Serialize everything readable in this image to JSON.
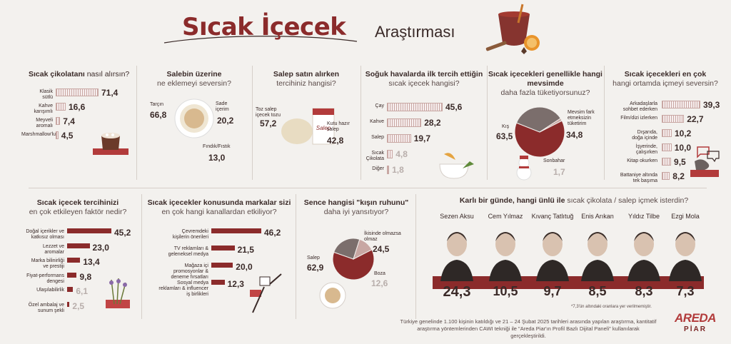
{
  "header": {
    "title_main": "Sıcak İçecek",
    "title_sub": "Araştırması"
  },
  "colors": {
    "dark_red": "#8b2b2b",
    "light_red": "#c8a7a3",
    "gray": "#7b6e6c",
    "bg": "#f3f1ee"
  },
  "chart_data": [
    {
      "id": "chocolate",
      "type": "bar",
      "title_bold": "Sıcak çikolatanı",
      "title_rest": " nasıl alırsın?",
      "categories": [
        "Klasik sütlü",
        "Kahve karışımlı",
        "Meyveli aromalı",
        "Marshmallow'lu"
      ],
      "category_lines": [
        [
          "Klasik",
          "sütlü"
        ],
        [
          "Kahve",
          "karışımlı"
        ],
        [
          "Meyveli",
          "aromalı"
        ],
        [
          "Marshmallow'lu"
        ]
      ],
      "values": [
        71.4,
        16.6,
        7.4,
        4.5
      ],
      "labels": [
        "71,4",
        "16,6",
        "7,4",
        "4,5"
      ]
    },
    {
      "id": "salep_topping",
      "type": "pie",
      "title_bold": "Salebin üzerine",
      "title_rest": "ne eklemeyi seversin?",
      "categories": [
        "Tarçın",
        "Sade içerim",
        "Fındık/Fıstık"
      ],
      "category_lines": [
        [
          "Tarçın"
        ],
        [
          "Sade",
          "içerim"
        ],
        [
          "Fındık/Fıstık"
        ]
      ],
      "values": [
        66.8,
        20.2,
        13.0
      ],
      "labels": [
        "66,8",
        "20,2",
        "13,0"
      ]
    },
    {
      "id": "salep_buy",
      "type": "bar",
      "title_bold": "Salep satın alırken",
      "title_rest": "tercihiniz hangisi?",
      "categories": [
        "Toz salep içecek tozu",
        "Kutu hazır salep"
      ],
      "category_lines": [
        [
          "Toz salep",
          "içecek tozu"
        ],
        [
          "Kutu hazır",
          "salep"
        ]
      ],
      "values": [
        57.2,
        42.8
      ],
      "labels": [
        "57,2",
        "42,8"
      ]
    },
    {
      "id": "cold_weather",
      "type": "bar",
      "title_bold": "Soğuk havalarda ilk tercih ettiğin",
      "title_rest": "sıcak içecek hangisi?",
      "categories": [
        "Çay",
        "Kahve",
        "Salep",
        "Sıcak Çikolata",
        "Diğer"
      ],
      "category_lines": [
        [
          "Çay"
        ],
        [
          "Kahve"
        ],
        [
          "Salep"
        ],
        [
          "Sıcak",
          "Çikolata"
        ],
        [
          "Diğer"
        ]
      ],
      "values": [
        45.6,
        28.2,
        19.7,
        4.8,
        1.8
      ],
      "labels": [
        "45,6",
        "28,2",
        "19,7",
        "4,8",
        "1,8"
      ]
    },
    {
      "id": "season",
      "type": "pie",
      "title_bold": "Sıcak içecekleri genellikle hangi mevsimde",
      "title_rest": "daha fazla tüketiyorsunuz?",
      "categories": [
        "Kış",
        "Mevsim fark etmeksizin tüketirim",
        "Sonbahar"
      ],
      "category_lines": [
        [
          "Kış"
        ],
        [
          "Mevsim fark",
          "etmeksizin",
          "tüketirim"
        ],
        [
          "Sonbahar"
        ]
      ],
      "values": [
        63.5,
        34.8,
        1.7
      ],
      "labels": [
        "63,5",
        "34,8",
        "1,7"
      ]
    },
    {
      "id": "environment",
      "type": "bar",
      "title_bold": "Sıcak içecekleri en çok",
      "title_rest": "hangi ortamda içmeyi seversin?",
      "categories": [
        "Arkadaşlarla sohbet ederken",
        "Film/dizi izlerken",
        "Dışarıda, doğa içinde",
        "İşyerinde, çalışırken",
        "Kitap okurken",
        "Battaniye altında tek başıma"
      ],
      "category_lines": [
        [
          "Arkadaşlarla",
          "sohbet ederken"
        ],
        [
          "Film/dizi izlerken"
        ],
        [
          "Dışarıda,",
          "doğa içinde"
        ],
        [
          "İşyerinde,",
          "çalışırken"
        ],
        [
          "Kitap okurken"
        ],
        [
          "Battaniye altında",
          "tek başıma"
        ]
      ],
      "values": [
        39.3,
        22.7,
        10.2,
        10.0,
        9.5,
        8.2
      ],
      "labels": [
        "39,3",
        "22,7",
        "10,2",
        "10,0",
        "9,5",
        "8,2"
      ]
    },
    {
      "id": "factor",
      "type": "bar",
      "title_bold": "Sıcak içecek tercihinizi",
      "title_rest": "en çok etkileyen faktör nedir?",
      "categories": [
        "Doğal içerikler ve katkısız olması",
        "Lezzet ve aromalar",
        "Marka bilinirliği ve prestiji",
        "Fiyat-performans dengesi",
        "Ulaşılabilirlik",
        "Özel ambalaj ve sunum şekli"
      ],
      "category_lines": [
        [
          "Doğal içerikler ve",
          "katkısız olması"
        ],
        [
          "Lezzet ve",
          "aromalar"
        ],
        [
          "Marka bilinirliği",
          "ve prestiji"
        ],
        [
          "Fiyat-performans",
          "dengesi"
        ],
        [
          "Ulaşılabilirlik"
        ],
        [
          "Özel ambalaj ve",
          "sunum şekli"
        ]
      ],
      "values": [
        45.2,
        23.0,
        13.4,
        9.8,
        6.1,
        2.5
      ],
      "labels": [
        "45,2",
        "23,0",
        "13,4",
        "9,8",
        "6,1",
        "2,5"
      ]
    },
    {
      "id": "channels",
      "type": "bar",
      "title_bold": "Sıcak içecekler konusunda markalar sizi",
      "title_rest": "en çok hangi kanallardan etkiliyor?",
      "categories": [
        "Çevremdeki kişilerin önerileri",
        "TV reklamları & geleneksel medya",
        "Mağaza içi promosyonlar & deneme fırsatları",
        "Sosyal medya reklamları & influencer iş birlikleri"
      ],
      "category_lines": [
        [
          "Çevremdeki",
          "kişilerin önerileri"
        ],
        [
          "TV reklamları &",
          "geleneksel medya"
        ],
        [
          "Mağaza içi",
          "promosyonlar &",
          "deneme fırsatları"
        ],
        [
          "Sosyal medya",
          "reklamları & influencer",
          "iş birlikleri"
        ]
      ],
      "values": [
        46.2,
        21.5,
        20.0,
        12.3
      ],
      "labels": [
        "46,2",
        "21,5",
        "20,0",
        "12,3"
      ]
    },
    {
      "id": "winter_soul",
      "type": "pie",
      "title_bold": "Sence hangisi \"kışın ruhunu\"",
      "title_rest": "daha iyi yansıtıyor?",
      "categories": [
        "Salep",
        "İkisinde olmazsa olmaz",
        "Boza"
      ],
      "category_lines": [
        [
          "Salep"
        ],
        [
          "İkisinde olmazsa",
          "olmaz"
        ],
        [
          "Boza"
        ]
      ],
      "values": [
        62.9,
        24.5,
        12.6
      ],
      "labels": [
        "62,9",
        "24,5",
        "12,6"
      ]
    },
    {
      "id": "celebrity",
      "type": "bar",
      "title_bold": "Karlı bir günde, hangi ünlü ile",
      "title_rest": " sıcak çikolata / salep içmek isterdin?",
      "categories": [
        "Sezen Aksu",
        "Cem Yılmaz",
        "Kıvanç Tatlıtuğ",
        "Enis Arıkan",
        "Yıldız Tilbe",
        "Ezgi Mola"
      ],
      "values": [
        24.3,
        10.5,
        9.7,
        8.5,
        8.3,
        7.3
      ],
      "labels": [
        "24,3",
        "10,5",
        "9,7",
        "8,5",
        "8,3",
        "7,3"
      ]
    }
  ],
  "footnote": "*7,3'ün altındaki oranlara yer verilmemiştir.",
  "footer": {
    "line1": "Türkiye genelinde 1.100 kişinin katıldığı ve 21 – 24 Şubat 2025 tarihleri arasında yapılan araştırma, kantitatif",
    "line2": "araştırma yöntemlerinden CAWI tekniği ile \"Areda Piar'ın Profil Bazlı Dijital Paneli\" kullanılarak gerçekleştirildi."
  },
  "logo": {
    "line1": "AREDA",
    "line2": "PİAR"
  }
}
